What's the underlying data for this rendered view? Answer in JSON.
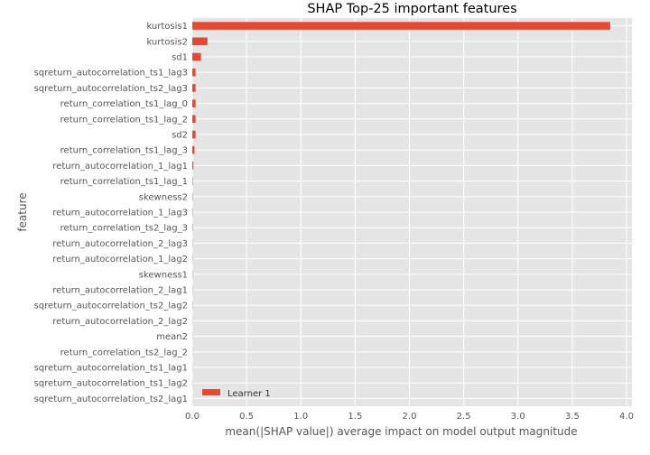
{
  "chart_data": {
    "type": "bar",
    "orientation": "horizontal",
    "title": "SHAP Top-25 important features",
    "xlabel": "mean(|SHAP value|) average impact on model output magnitude",
    "ylabel": "feature",
    "xlim": [
      0,
      4.05
    ],
    "xticks": [
      "0.0",
      "0.5",
      "1.0",
      "1.5",
      "2.0",
      "2.5",
      "3.0",
      "3.5",
      "4.0"
    ],
    "xtick_values": [
      0,
      0.5,
      1.0,
      1.5,
      2.0,
      2.5,
      3.0,
      3.5,
      4.0
    ],
    "grid": true,
    "legend_position": "lower-left",
    "categories": [
      "kurtosis1",
      "kurtosis2",
      "sd1",
      "sqreturn_autocorrelation_ts1_lag3",
      "sqreturn_autocorrelation_ts2_lag3",
      "return_correlation_ts1_lag_0",
      "return_correlation_ts1_lag_2",
      "sd2",
      "return_correlation_ts1_lag_3",
      "return_autocorrelation_1_lag1",
      "return_correlation_ts1_lag_1",
      "skewness2",
      "return_autocorrelation_1_lag3",
      "return_correlation_ts2_lag_3",
      "return_autocorrelation_2_lag3",
      "return_autocorrelation_1_lag2",
      "skewness1",
      "return_autocorrelation_2_lag1",
      "sqreturn_autocorrelation_ts2_lag2",
      "return_autocorrelation_2_lag2",
      "mean2",
      "return_correlation_ts2_lag_2",
      "sqreturn_autocorrelation_ts1_lag1",
      "sqreturn_autocorrelation_ts1_lag2",
      "sqreturn_autocorrelation_ts2_lag1"
    ],
    "series": [
      {
        "name": "Learner 1",
        "color": "#E24A33",
        "values": [
          3.85,
          0.14,
          0.08,
          0.03,
          0.03,
          0.03,
          0.03,
          0.03,
          0.02,
          0.01,
          0.004,
          0.003,
          0.003,
          0.003,
          0.002,
          0.002,
          0.002,
          0.002,
          0.002,
          0.001,
          0.001,
          0.001,
          0.001,
          0.001,
          0.001
        ]
      }
    ]
  },
  "colors": {
    "plot_background": "#E5E5E5",
    "grid": "#FFFFFF",
    "bar": "#E24A33"
  }
}
